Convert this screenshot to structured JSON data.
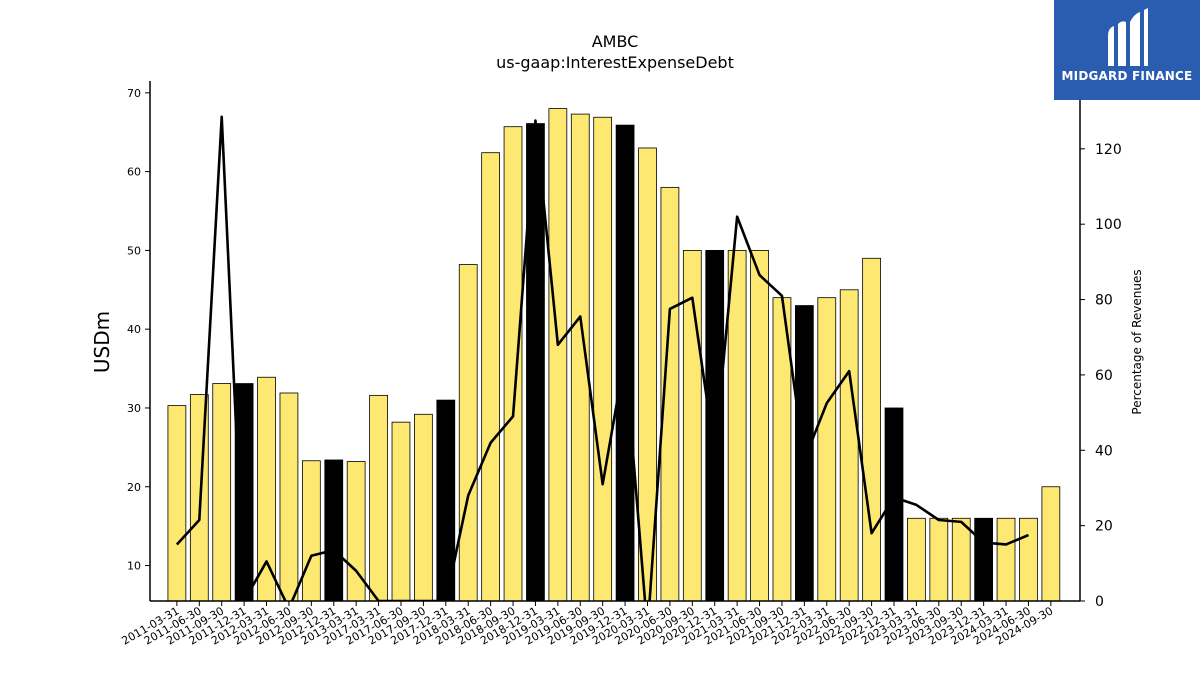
{
  "brand": {
    "name": "MIDGARD FINANCE",
    "color": "#2a5db0",
    "icon": "midgard-logo-icon"
  },
  "chart_data": {
    "type": "bar",
    "title": "AMBC",
    "subtitle": "us-gaap:InterestExpenseDebt",
    "ylabel": "USDm",
    "y2label": "Percentage of Revenues",
    "ylim": [
      5.5,
      71.5
    ],
    "y2lim": [
      0,
      138
    ],
    "yticks": [
      10,
      20,
      30,
      40,
      50,
      60,
      70
    ],
    "y2ticks": [
      0,
      20,
      40,
      60,
      80,
      100,
      120
    ],
    "bar_colors": {
      "quarter": "#fde872",
      "year_end": "#000000"
    },
    "categories": [
      "2011-03-31",
      "2011-06-30",
      "2011-09-30",
      "2011-12-31",
      "2012-03-31",
      "2012-06-30",
      "2012-09-30",
      "2012-12-31",
      "2013-03-31",
      "2017-03-31",
      "2017-06-30",
      "2017-09-30",
      "2017-12-31",
      "2018-03-31",
      "2018-06-30",
      "2018-09-30",
      "2018-12-31",
      "2019-03-31",
      "2019-06-30",
      "2019-09-30",
      "2019-12-31",
      "2020-03-31",
      "2020-06-30",
      "2020-09-30",
      "2020-12-31",
      "2021-03-31",
      "2021-06-30",
      "2021-09-30",
      "2021-12-31",
      "2022-03-31",
      "2022-06-30",
      "2022-09-30",
      "2022-12-31",
      "2023-03-31",
      "2023-06-30",
      "2023-09-30",
      "2023-12-31",
      "2024-03-31",
      "2024-06-30",
      "2024-09-30"
    ],
    "series": [
      {
        "values": [
          30.3,
          31.7,
          33.1,
          33.1,
          33.9,
          31.9,
          23.3,
          23.4,
          23.2,
          31.6,
          28.2,
          29.2,
          31.0,
          48.2,
          62.4,
          65.7,
          66.1,
          68.0,
          67.3,
          66.9,
          65.9,
          63.0,
          58.0,
          50.0,
          50.0,
          50.0,
          50.0,
          44.0,
          43.0,
          44.0,
          45.0,
          49.0,
          30.0,
          16.0,
          16.0,
          16.0,
          16.0,
          16.0,
          16.0,
          20.0
        ]
      },
      {
        "axis": "right",
        "type": "line",
        "values": [
          15,
          21.5,
          128.5,
          0,
          10.5,
          -2,
          12,
          13.5,
          8,
          0,
          0,
          0,
          0,
          28,
          42,
          49,
          127.5,
          68,
          75.5,
          31,
          65,
          -8,
          77.5,
          80.5,
          39,
          102,
          86.5,
          81,
          37.5,
          52.5,
          61,
          18,
          27.5,
          25.5,
          21.5,
          21,
          15.5,
          15,
          17.5,
          null
        ]
      }
    ]
  }
}
